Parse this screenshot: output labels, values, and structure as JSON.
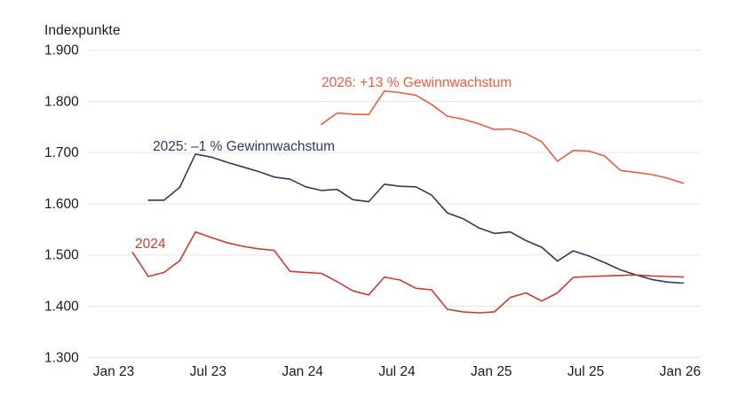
{
  "chart_data": {
    "type": "line",
    "ylabel": "Indexpunkte",
    "grid": "horizontal-only",
    "legend": "inline-labels-near-lines",
    "background": "#ffffff",
    "gridline_color": "#e6e6e6",
    "text_color": "#1c1c1c",
    "y_axis": {
      "min": 1300,
      "max": 1900,
      "tick_step": 100,
      "ticks": [
        1900,
        1800,
        1700,
        1600,
        1500,
        1400,
        1300
      ],
      "tick_labels": [
        "1.900",
        "1.800",
        "1.700",
        "1.600",
        "1.500",
        "1.400",
        "1.300"
      ]
    },
    "x_axis": {
      "tick_labels": [
        "Jan 23",
        "Jul 23",
        "Jan 24",
        "Jul 24",
        "Jan 25",
        "Jul 25",
        "Jan 26"
      ],
      "tick_month_offsets": [
        0,
        6,
        12,
        18,
        24,
        30,
        36
      ]
    },
    "series": [
      {
        "id": "2024",
        "label": "2024",
        "color": "#d03a2e",
        "start_month": "Feb 23",
        "start_month_offset": 1,
        "values": [
          1505,
          1458,
          1466,
          1489,
          1545,
          1534,
          1524,
          1517,
          1512,
          1509,
          1468,
          1466,
          1464,
          1448,
          1430,
          1422,
          1457,
          1451,
          1435,
          1432,
          1394,
          1389,
          1387,
          1389,
          1417,
          1426,
          1410,
          1426,
          1456,
          1458,
          1459,
          1460,
          1461,
          1459,
          1458,
          1457
        ]
      },
      {
        "id": "2025",
        "label": "2025: –1 % Gewinnwachstum",
        "color": "#2f3a68",
        "start_month": "Mar 23",
        "start_month_offset": 2,
        "values": [
          1607,
          1607,
          1632,
          1697,
          1691,
          1681,
          1672,
          1663,
          1652,
          1648,
          1633,
          1626,
          1628,
          1608,
          1604,
          1638,
          1634,
          1633,
          1617,
          1582,
          1571,
          1553,
          1542,
          1545,
          1528,
          1515,
          1488,
          1508,
          1498,
          1485,
          1471,
          1461,
          1452,
          1447,
          1445
        ]
      },
      {
        "id": "2026",
        "label": "2026: +13 % Gewinnwachstum",
        "color": "#f15b40",
        "start_month": "Feb 24",
        "start_month_offset": 13,
        "values": [
          1755,
          1777,
          1775,
          1774,
          1820,
          1817,
          1812,
          1794,
          1771,
          1765,
          1756,
          1745,
          1746,
          1737,
          1721,
          1683,
          1704,
          1703,
          1693,
          1665,
          1661,
          1657,
          1650,
          1640
        ]
      }
    ]
  }
}
